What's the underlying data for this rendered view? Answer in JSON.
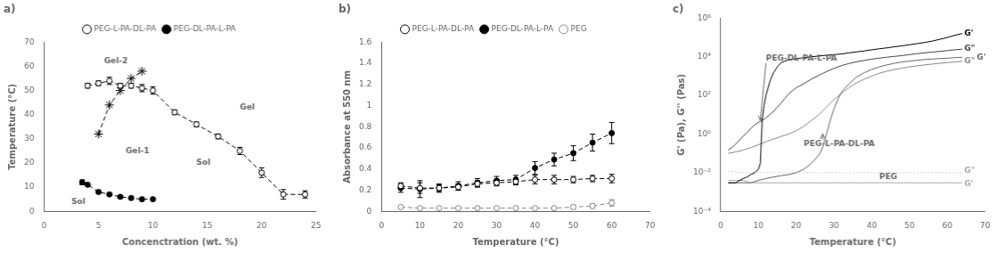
{
  "chart_data": [
    {
      "type": "line",
      "title": "a)",
      "xlabel": "Concenctration (wt. %)",
      "ylabel": "Temperature (°C)",
      "xlim": [
        0,
        25
      ],
      "ylim": [
        0,
        70
      ],
      "xticks": [
        0,
        5,
        10,
        15,
        20,
        25
      ],
      "yticks": [
        0,
        10,
        20,
        30,
        40,
        50,
        60,
        70
      ],
      "grid": false,
      "legend": "top",
      "series": [
        {
          "name": "PEG-L-PA-DL-PA",
          "color": "#000000",
          "marker": "open_circle",
          "line_style": "dashed",
          "x": [
            4,
            5,
            6,
            7,
            8,
            9,
            10,
            12,
            14,
            16,
            18,
            20,
            22,
            24
          ],
          "values": [
            52,
            53,
            54,
            52,
            52,
            51,
            50,
            41,
            36,
            31,
            25,
            16,
            7,
            7
          ],
          "yerr": [
            1,
            1,
            1.5,
            1,
            1,
            1.5,
            1.5,
            1,
            1,
            1,
            1.5,
            2,
            2,
            1.5
          ]
        },
        {
          "name": "PEG-DL-PA-L-PA",
          "color": "#000000",
          "marker": "circle",
          "line_style": "dashed",
          "x": [
            3.5,
            4,
            5,
            6,
            7,
            8,
            9,
            10
          ],
          "values": [
            12,
            11,
            8,
            7,
            6,
            5.5,
            5,
            5
          ],
          "yerr": [
            1,
            0.5,
            0.5,
            0.5,
            0.5,
            0.5,
            0.5,
            0.5
          ]
        },
        {
          "color": "#000000",
          "marker": "star",
          "line_style": "dashed",
          "x": [
            5,
            6,
            7,
            8,
            9
          ],
          "values": [
            32,
            44,
            50,
            55,
            58
          ]
        }
      ],
      "annotations": [
        {
          "text": "Gel-2",
          "x": 5.5,
          "y": 62
        },
        {
          "text": "Gel-1",
          "x": 7.5,
          "y": 25
        },
        {
          "text": "Gel",
          "x": 18,
          "y": 43
        },
        {
          "text": "Sol",
          "x": 2.5,
          "y": 4
        },
        {
          "text": "Sol",
          "x": 14,
          "y": 20
        }
      ]
    },
    {
      "type": "line",
      "title": "b)",
      "xlabel": "Temperature (°C)",
      "ylabel": "Absorbance at 550 nm",
      "xlim": [
        0,
        70
      ],
      "ylim": [
        0,
        1.6
      ],
      "xticks": [
        0,
        10,
        20,
        30,
        40,
        50,
        60,
        70
      ],
      "yticks": [
        0,
        0.2,
        0.4,
        0.6,
        0.8,
        1,
        1.2,
        1.4,
        1.6
      ],
      "grid": false,
      "legend": "top",
      "series": [
        {
          "name": "PEG-L-PA-DL-PA",
          "color": "#000000",
          "marker": "open_circle",
          "line_style": "dashed",
          "x": [
            5,
            10,
            15,
            20,
            25,
            30,
            35,
            40,
            45,
            50,
            55,
            60
          ],
          "values": [
            0.24,
            0.22,
            0.22,
            0.23,
            0.26,
            0.27,
            0.28,
            0.3,
            0.3,
            0.3,
            0.31,
            0.31
          ],
          "yerr": [
            0.03,
            0.05,
            0.03,
            0.03,
            0.03,
            0.03,
            0.03,
            0.04,
            0.04,
            0.03,
            0.03,
            0.04
          ]
        },
        {
          "name": "PEG-DL-PA-L-PA",
          "color": "#000000",
          "marker": "circle",
          "line_style": "dashed",
          "x": [
            5,
            10,
            15,
            20,
            25,
            30,
            35,
            40,
            45,
            50,
            55,
            60
          ],
          "values": [
            0.22,
            0.21,
            0.22,
            0.24,
            0.27,
            0.29,
            0.3,
            0.41,
            0.49,
            0.55,
            0.65,
            0.74
          ],
          "yerr": [
            0.04,
            0.08,
            0.04,
            0.04,
            0.04,
            0.04,
            0.04,
            0.06,
            0.06,
            0.07,
            0.08,
            0.1
          ]
        },
        {
          "name": "PEG",
          "color": "#888888",
          "marker": "open_circle",
          "line_style": "dashed",
          "x": [
            5,
            10,
            15,
            20,
            25,
            30,
            35,
            40,
            45,
            50,
            55,
            60
          ],
          "values": [
            0.04,
            0.03,
            0.03,
            0.03,
            0.03,
            0.03,
            0.03,
            0.03,
            0.03,
            0.04,
            0.05,
            0.08
          ],
          "yerr": [
            0.01,
            0.01,
            0.01,
            0.01,
            0.01,
            0.01,
            0.01,
            0.01,
            0.01,
            0.02,
            0.02,
            0.03
          ]
        }
      ]
    },
    {
      "type": "line",
      "title": "c)",
      "xlabel": "Temperature (°C)",
      "ylabel": "G' (Pa), G'' (Pas)",
      "log": "y",
      "xlim": [
        0,
        70
      ],
      "ylim": [
        0.0001,
        1000000
      ],
      "xticks": [
        0,
        10,
        20,
        30,
        40,
        50,
        60,
        70
      ],
      "yticks": [
        {
          "value": 0.0001,
          "label": "10⁻⁴"
        },
        {
          "value": 0.01,
          "label": "10⁻²"
        },
        {
          "value": 1,
          "label": "10⁰"
        },
        {
          "value": 100,
          "label": "10²"
        },
        {
          "value": 10000,
          "label": "10⁴"
        },
        {
          "value": 1000000,
          "label": "10⁶"
        }
      ],
      "grid": false,
      "series": [
        {
          "color": "#000000",
          "line_style": "solid",
          "x": [
            2,
            3,
            4,
            5,
            6,
            7,
            8,
            9,
            10,
            10.5,
            11,
            11.5,
            12,
            13,
            14,
            15,
            16,
            17,
            18,
            20,
            22,
            24,
            26,
            28,
            30,
            32,
            34,
            36,
            38,
            40,
            42,
            44,
            46,
            48,
            50,
            52,
            54,
            56,
            58,
            60,
            62,
            64
          ],
          "values": [
            0.003,
            0.003,
            0.003,
            0.004,
            0.005,
            0.006,
            0.008,
            0.01,
            0.015,
            0.03,
            5,
            30,
            100,
            500,
            1500,
            3000,
            5000,
            6000,
            7000,
            8000,
            9000,
            10000,
            11000,
            12000,
            13000,
            14000,
            16000,
            18000,
            20000,
            23000,
            26000,
            29000,
            33000,
            37000,
            42000,
            48000,
            55000,
            65000,
            80000,
            100000,
            130000,
            160000
          ]
        },
        {
          "color": "#444444",
          "line_style": "solid",
          "x": [
            2,
            3,
            4,
            5,
            6,
            7,
            8,
            9,
            10,
            11,
            12,
            13,
            14,
            15,
            16,
            17,
            18,
            20,
            22,
            24,
            26,
            28,
            30,
            32,
            34,
            36,
            38,
            40,
            42,
            44,
            46,
            48,
            50,
            52,
            54,
            56,
            58,
            60,
            62,
            64
          ],
          "values": [
            0.15,
            0.2,
            0.3,
            0.5,
            0.8,
            1.2,
            2,
            3,
            4,
            5,
            7,
            10,
            15,
            25,
            40,
            70,
            120,
            250,
            400,
            700,
            1100,
            1700,
            2500,
            3500,
            4500,
            5500,
            6500,
            7500,
            8500,
            9500,
            10500,
            11500,
            13000,
            14500,
            16000,
            17500,
            19000,
            21000,
            23000,
            25000
          ]
        },
        {
          "color": "#666666",
          "line_style": "solid",
          "x": [
            2,
            4,
            6,
            8,
            10,
            12,
            14,
            16,
            18,
            20,
            22,
            24,
            26,
            27,
            28,
            29,
            30,
            31,
            32,
            34,
            36,
            38,
            40,
            42,
            44,
            46,
            48,
            50,
            52,
            54,
            56,
            58,
            60,
            62,
            64
          ],
          "values": [
            0.003,
            0.003,
            0.003,
            0.003,
            0.004,
            0.005,
            0.006,
            0.007,
            0.008,
            0.01,
            0.015,
            0.03,
            0.08,
            0.2,
            1,
            5,
            20,
            60,
            150,
            400,
            900,
            1500,
            2200,
            3000,
            3800,
            4600,
            5400,
            6000,
            6600,
            7200,
            7700,
            8100,
            8500,
            9000,
            9500
          ]
        },
        {
          "color": "#888888",
          "line_style": "solid",
          "x": [
            2,
            4,
            6,
            8,
            10,
            12,
            14,
            16,
            18,
            20,
            22,
            24,
            26,
            28,
            30,
            32,
            34,
            36,
            38,
            40,
            42,
            44,
            46,
            48,
            50,
            52,
            54,
            56,
            58,
            60,
            62,
            64
          ],
          "values": [
            0.1,
            0.12,
            0.15,
            0.2,
            0.28,
            0.4,
            0.55,
            0.75,
            1,
            1.5,
            2.5,
            5,
            10,
            25,
            60,
            130,
            250,
            450,
            700,
            1000,
            1400,
            1800,
            2200,
            2600,
            3000,
            3400,
            3800,
            4200,
            4600,
            5000,
            5400,
            5800
          ]
        },
        {
          "color": "#aaaaaa",
          "line_style": "solid",
          "x": [
            2,
            4,
            6,
            8,
            10,
            15,
            20,
            25,
            30,
            35,
            40,
            45,
            50,
            55,
            60,
            64
          ],
          "values": [
            0.004,
            0.004,
            0.004,
            0.003,
            0.003,
            0.003,
            0.003,
            0.003,
            0.003,
            0.003,
            0.003,
            0.003,
            0.003,
            0.003,
            0.003,
            0.003
          ]
        },
        {
          "color": "#aaaaaa",
          "line_style": "dotted",
          "x": [
            2,
            4,
            6,
            8,
            10,
            15,
            20,
            25,
            30,
            35,
            40,
            45,
            50,
            55,
            60,
            64
          ],
          "values": [
            0.012,
            0.011,
            0.01,
            0.01,
            0.01,
            0.01,
            0.01,
            0.01,
            0.01,
            0.01,
            0.01,
            0.01,
            0.01,
            0.01,
            0.01,
            0.01
          ]
        }
      ],
      "annotations": [
        {
          "text": "PEG-DL-PA-L-PA",
          "x": 12,
          "y": 8000,
          "arrow_x": 10.5,
          "arrow_y": 5
        },
        {
          "text": "PEG-L-PA-DL-PA",
          "x": 22,
          "y": 0.3,
          "arrow_x": 27,
          "arrow_y": 1
        },
        {
          "text": "PEG",
          "x": 42,
          "y": 0.006
        },
        {
          "text": "G'",
          "x": 64.5,
          "y": 160000,
          "color": "#000000"
        },
        {
          "text": "G\"",
          "x": 64.5,
          "y": 25000,
          "color": "#444444"
        },
        {
          "text": "G'",
          "x": 64.5,
          "y": 9500,
          "color": "#666666"
        },
        {
          "text": "G\"",
          "x": 64.5,
          "y": 5800,
          "color": "#888888"
        },
        {
          "text": "G\"",
          "x": 64.5,
          "y": 0.012,
          "color": "#aaaaaa"
        },
        {
          "text": "G'",
          "x": 64.5,
          "y": 0.0025,
          "color": "#aaaaaa"
        }
      ]
    }
  ]
}
